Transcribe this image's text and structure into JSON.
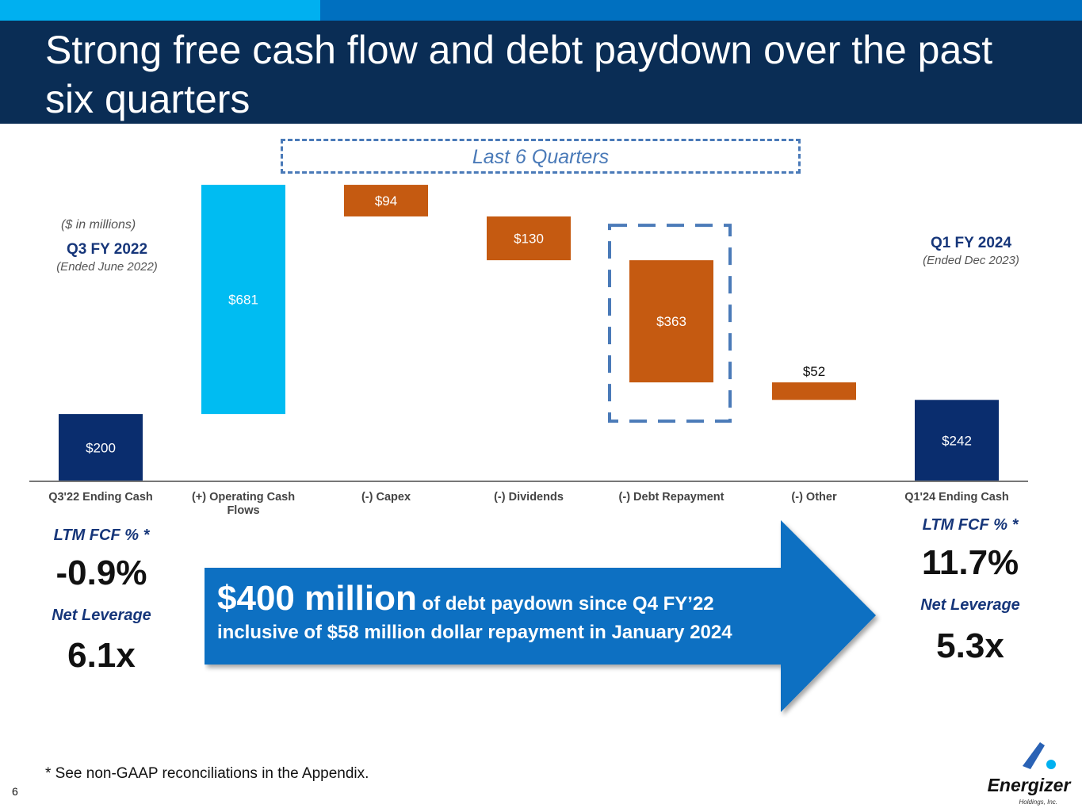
{
  "title": "Strong free cash flow and debt paydown over the past six quarters",
  "bracket_label": "Last 6 Quarters",
  "units_note": "($ in millions)",
  "start_period": {
    "label": "Q3 FY 2022",
    "sub": "(Ended June 2022)"
  },
  "end_period": {
    "label": "Q1 FY 2024",
    "sub": "(Ended Dec 2023)"
  },
  "chart_data": {
    "type": "bar",
    "subtype": "waterfall",
    "categories": [
      "Q3'22 Ending Cash",
      "(+) Operating Cash Flows",
      "(-) Capex",
      "(-) Dividends",
      "(-) Debt Repayment",
      "(-) Other",
      "Q1'24 Ending Cash"
    ],
    "values": [
      200,
      681,
      -94,
      -130,
      -363,
      -52,
      242
    ],
    "data_labels": [
      "$200",
      "$681",
      "$94",
      "$130",
      "$363",
      "$52",
      "$242"
    ],
    "bar_kinds": [
      "total",
      "increase",
      "decrease",
      "decrease",
      "decrease",
      "decrease",
      "total"
    ],
    "highlighted_category": "(-) Debt Repayment",
    "colors": {
      "total": "#0a2d6e",
      "increase": "#00bcf2",
      "decrease": "#c55a11"
    },
    "ylim": [
      0,
      900
    ],
    "grid": false
  },
  "left_metrics": {
    "fcf_label": "LTM FCF % *",
    "fcf_value": "-0.9%",
    "leverage_label": "Net Leverage",
    "leverage_value": "6.1x"
  },
  "right_metrics": {
    "fcf_label": "LTM FCF % *",
    "fcf_value": "11.7%",
    "leverage_label": "Net Leverage",
    "leverage_value": "5.3x"
  },
  "callout": {
    "big": "$400 million",
    "rest": " of debt paydown since Q4 FY’22",
    "line2": "inclusive of $58 million dollar repayment in January 2024"
  },
  "footnote": "* See non-GAAP reconciliations in the Appendix.",
  "page_number": "6",
  "logo": {
    "name": "Energizer",
    "sub": "Holdings, Inc."
  },
  "colors": {
    "header_bg": "#0a2d55",
    "accent_light": "#00b0f0",
    "accent": "#0070c0",
    "arrow": "#0a6fc2"
  }
}
